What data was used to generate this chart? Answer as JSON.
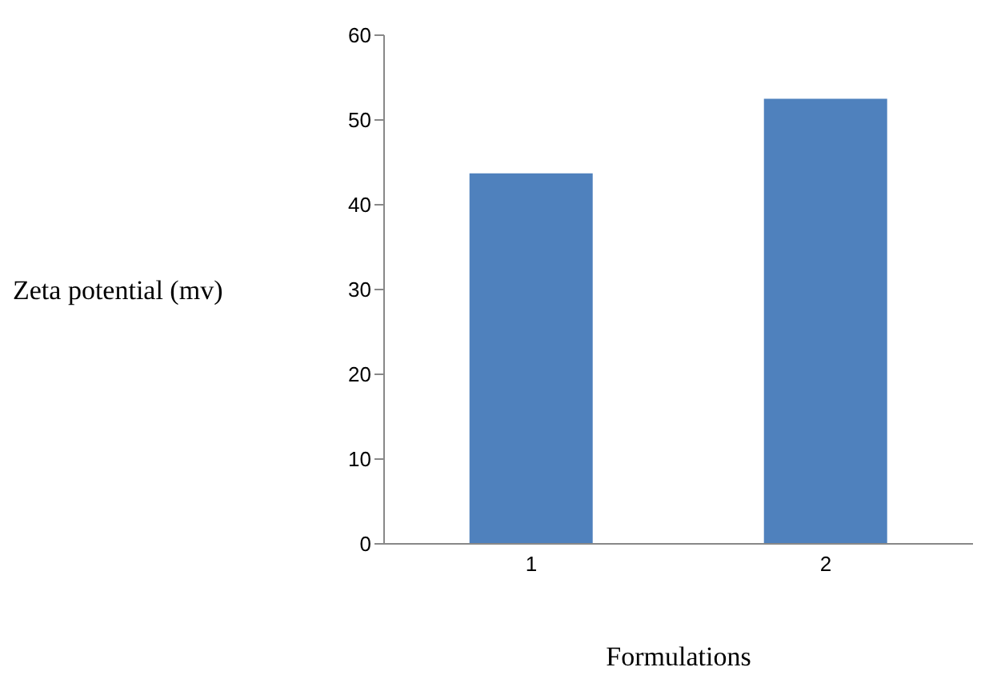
{
  "chart_data": {
    "type": "bar",
    "categories": [
      "1",
      "2"
    ],
    "values": [
      43.7,
      52.5
    ],
    "color": "#4f81bd",
    "xlabel": "Formulations",
    "ylabel": "Zeta potential (mv)",
    "ylim": [
      0,
      60
    ],
    "yticks": [
      0,
      10,
      20,
      30,
      40,
      50,
      60
    ],
    "grid": false,
    "legend": false
  }
}
